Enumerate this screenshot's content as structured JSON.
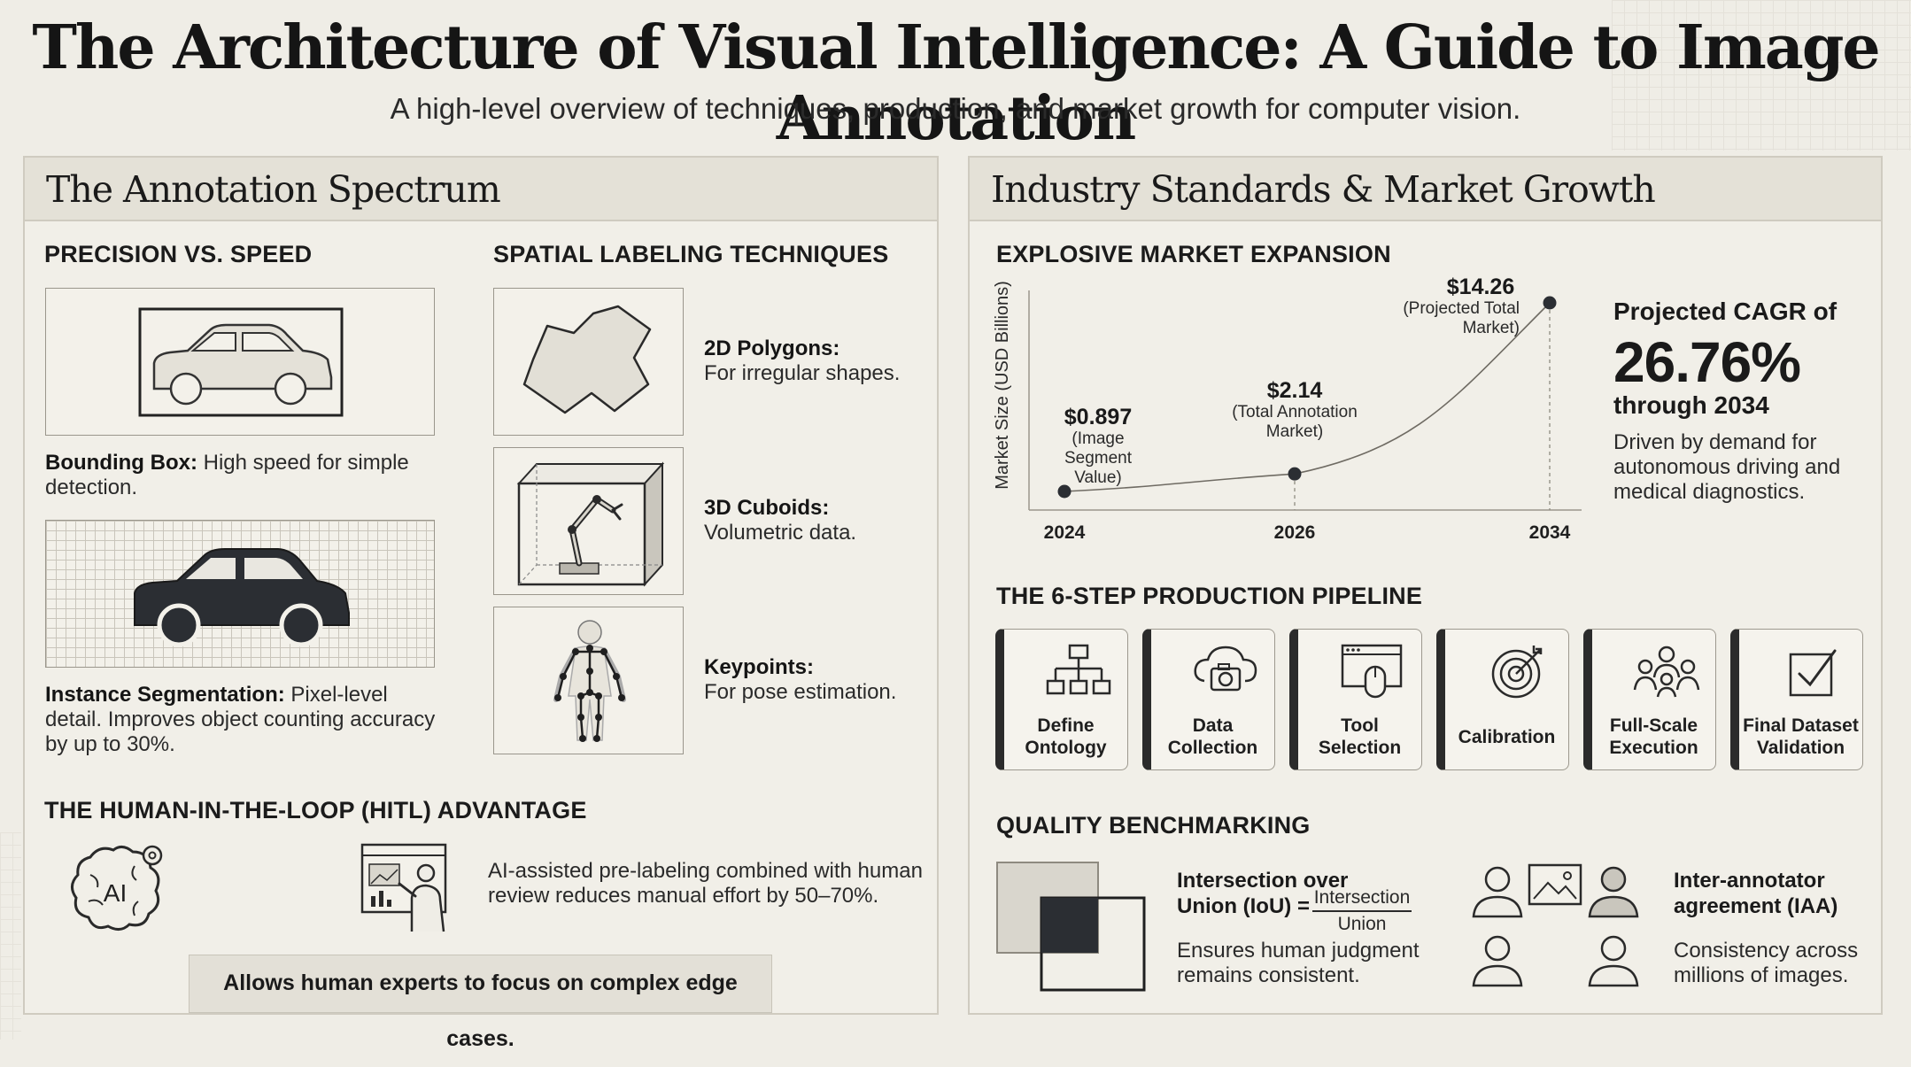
{
  "header": {
    "title": "The Architecture of Visual Intelligence: A Guide to Image Annotation",
    "subtitle": "A high-level overview of techniques, production, and market growth for computer vision."
  },
  "left_panel": {
    "title": "The Annotation Spectrum",
    "precision_heading": "PRECISION VS. SPEED",
    "bounding_box": {
      "term": "Bounding Box:",
      "desc": "High speed for simple detection."
    },
    "instance_seg": {
      "term": "Instance Segmentation:",
      "desc": "Pixel-level detail. Improves object counting accuracy by up to 30%."
    },
    "spatial_heading": "SPATIAL LABELING TECHNIQUES",
    "techniques": [
      {
        "term": "2D Polygons:",
        "desc": "For irregular shapes.",
        "icon": "polygon-icon"
      },
      {
        "term": "3D Cuboids:",
        "desc": "Volumetric data.",
        "icon": "cuboid-robot-arm-icon"
      },
      {
        "term": "Keypoints:",
        "desc": "For pose estimation.",
        "icon": "skeleton-keypoints-icon"
      }
    ],
    "hitl_heading": "THE HUMAN-IN-THE-LOOP (HITL) ADVANTAGE",
    "hitl_brain_label": "AI",
    "hitl_text": "AI-assisted pre-labeling combined with human review reduces manual effort by 50–70%.",
    "hitl_banner": "Allows human experts to focus on complex edge cases."
  },
  "right_panel": {
    "title": "Industry Standards & Market Growth",
    "market_heading": "EXPLOSIVE MARKET EXPANSION",
    "cagr": {
      "prefix": "Projected CAGR of",
      "value": "26.76%",
      "suffix": "through 2034",
      "desc": "Driven by demand for autonomous driving and medical diagnostics."
    },
    "pipeline_heading": "THE 6-STEP PRODUCTION PIPELINE",
    "steps": [
      {
        "label": "Define Ontology",
        "icon": "hierarchy-icon"
      },
      {
        "label": "Data Collection",
        "icon": "cloud-camera-icon"
      },
      {
        "label": "Tool Selection",
        "icon": "window-mouse-icon"
      },
      {
        "label": "Calibration",
        "icon": "target-icon"
      },
      {
        "label": "Full-Scale Execution",
        "icon": "team-icon"
      },
      {
        "label": "Final Dataset Validation",
        "icon": "checkbox-icon"
      }
    ],
    "quality_heading": "QUALITY BENCHMARKING",
    "iou": {
      "title_1": "Intersection over",
      "title_2": "Union (IoU) =",
      "numerator": "Intersection",
      "denominator": "Union",
      "desc": "Ensures human judgment remains consistent."
    },
    "iaa": {
      "title": "Inter-annotator agreement (IAA)",
      "desc": "Consistency across millions of images."
    }
  },
  "chart_data": {
    "type": "line",
    "ylabel": "Market Size (USD Billions)",
    "x": [
      "2024",
      "2026",
      "2034"
    ],
    "values": [
      0.897,
      2.14,
      14.26
    ],
    "value_labels": [
      "$0.897",
      "$2.14",
      "$14.26"
    ],
    "point_notes": [
      "(Image Segment Value)",
      "(Total Annotation Market)",
      "(Projected Total Market)"
    ],
    "grid": false
  },
  "colors": {
    "background": "#efede6",
    "panel_header": "#e4e1d7",
    "ink": "#1f1f1f",
    "accent_dark": "#2b2b2b"
  }
}
